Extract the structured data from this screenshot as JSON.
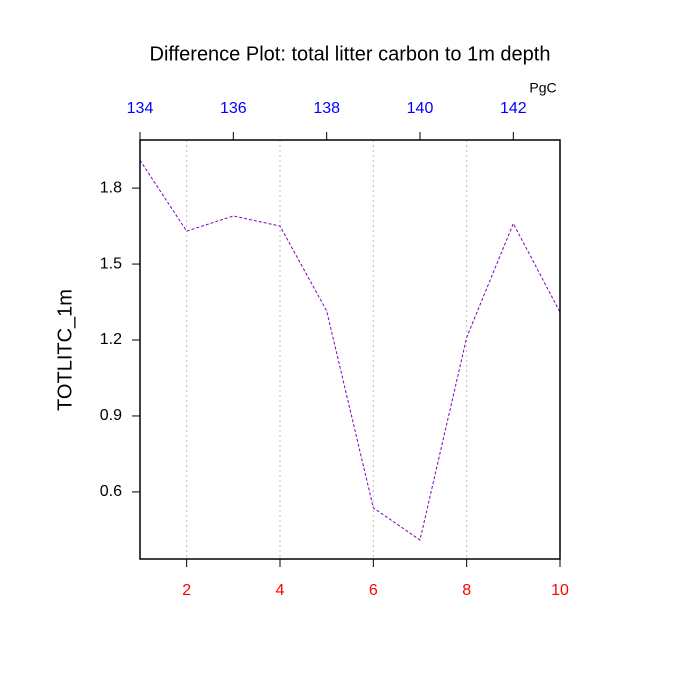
{
  "chart_data": {
    "type": "line",
    "title": "Difference Plot: total litter carbon to 1m depth",
    "y_label": "TOTLITC_1m",
    "x2_label": "PgC",
    "x": [
      1,
      2,
      3,
      4,
      5,
      6,
      7,
      8,
      9,
      10
    ],
    "series": [
      {
        "color": "#8000c0",
        "values": [
          1.91,
          1.63,
          1.69,
          1.65,
          1.315,
          0.537,
          0.41,
          1.21,
          1.66,
          1.31
        ]
      }
    ],
    "xlim": [
      1,
      10
    ],
    "xticks": [
      2,
      4,
      6,
      8,
      10
    ],
    "xtick_color": "#ff0000",
    "x2lim": [
      134,
      143
    ],
    "x2ticks": [
      134,
      136,
      138,
      140,
      142
    ],
    "x2tick_color": "#0000ff",
    "ylim": [
      0.335,
      1.99
    ],
    "yticks": [
      0.6,
      0.9,
      1.2,
      1.5,
      1.8
    ],
    "grid": true
  }
}
